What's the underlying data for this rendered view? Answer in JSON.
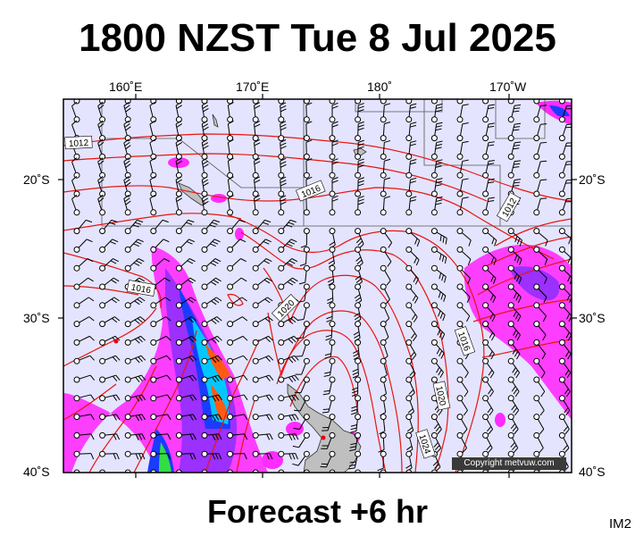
{
  "title": "1800 NZST Tue 8 Jul 2025",
  "subtitle": "Forecast +6 hr",
  "image_code": "IM2",
  "copyright": "Copyright metvuw.com",
  "map": {
    "lon_labels": [
      "160˚E",
      "170˚E",
      "180˚",
      "170˚W"
    ],
    "lat_labels": [
      "20˚S",
      "30˚S",
      "40˚S"
    ],
    "isobar_labels": [
      "1012",
      "1016",
      "1012",
      "1016",
      "1020",
      "1016",
      "1020",
      "1024"
    ],
    "colors": {
      "sea": "#e4e4ff",
      "isobar": "#e8150f",
      "land": "#c8c8c8",
      "rain_light": "#ff2bff",
      "rain_mid": "#7a30ff",
      "rain_heavy": "#1a3cff",
      "rain_intense": "#00c8ff",
      "rain_extreme": "#ff5a14"
    }
  }
}
